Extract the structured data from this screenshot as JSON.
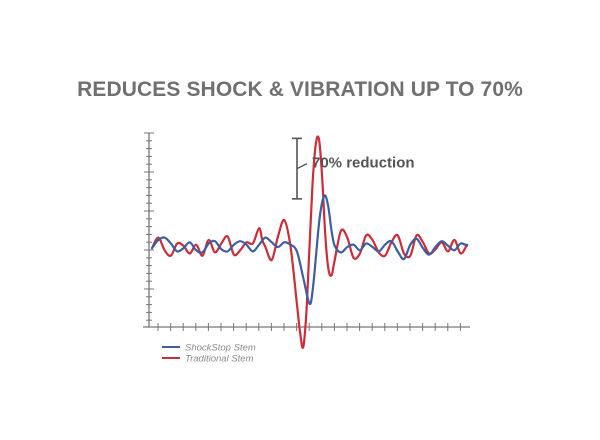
{
  "title": "REDUCES SHOCK & VIBRATION UP TO 70%",
  "colors": {
    "title": "#707070",
    "axis": "#777777",
    "shockstop": "#3b5ea5",
    "traditional": "#d12b35",
    "annotation": "#555555",
    "legend_text": "#8a8a8a"
  },
  "chart_data": {
    "type": "line",
    "title": "REDUCES SHOCK & VIBRATION UP TO 70%",
    "xlabel": "",
    "ylabel": "",
    "xlim": [
      0,
      100
    ],
    "ylim": [
      -100,
      100
    ],
    "grid": false,
    "legend_position": "bottom-left",
    "annotation": {
      "text": "70% reduction",
      "from_value": 92,
      "to_value": 42
    },
    "series": [
      {
        "name": "ShockStop Stem",
        "color": "#3b5ea5",
        "points": [
          [
            0,
            -1
          ],
          [
            2,
            6
          ],
          [
            4,
            8
          ],
          [
            6,
            3
          ],
          [
            8,
            -4
          ],
          [
            10,
            -1
          ],
          [
            12,
            4
          ],
          [
            14,
            -3
          ],
          [
            16,
            -5
          ],
          [
            18,
            3
          ],
          [
            20,
            5
          ],
          [
            22,
            -2
          ],
          [
            24,
            -4
          ],
          [
            26,
            2
          ],
          [
            28,
            5
          ],
          [
            30,
            2
          ],
          [
            32,
            -4
          ],
          [
            34,
            2
          ],
          [
            36,
            8
          ],
          [
            38,
            4
          ],
          [
            40,
            0
          ],
          [
            42,
            4
          ],
          [
            44,
            2
          ],
          [
            46,
            -4
          ],
          [
            48,
            -28
          ],
          [
            50,
            -52
          ],
          [
            51,
            -40
          ],
          [
            52,
            -10
          ],
          [
            53,
            20
          ],
          [
            54,
            38
          ],
          [
            55,
            44
          ],
          [
            56,
            34
          ],
          [
            57,
            14
          ],
          [
            58,
            1
          ],
          [
            60,
            -5
          ],
          [
            62,
            0
          ],
          [
            64,
            2
          ],
          [
            66,
            -3
          ],
          [
            68,
            3
          ],
          [
            70,
            0
          ],
          [
            72,
            -4
          ],
          [
            74,
            2
          ],
          [
            76,
            5
          ],
          [
            78,
            -4
          ],
          [
            80,
            -11
          ],
          [
            82,
            2
          ],
          [
            84,
            7
          ],
          [
            86,
            -1
          ],
          [
            88,
            -7
          ],
          [
            90,
            0
          ],
          [
            92,
            5
          ],
          [
            94,
            1
          ],
          [
            96,
            -3
          ],
          [
            98,
            3
          ],
          [
            100,
            1
          ]
        ]
      },
      {
        "name": "Traditional Stem",
        "color": "#d12b35",
        "points": [
          [
            0,
            -1
          ],
          [
            2,
            8
          ],
          [
            4,
            -3
          ],
          [
            6,
            -8
          ],
          [
            8,
            3
          ],
          [
            10,
            1
          ],
          [
            12,
            -6
          ],
          [
            14,
            2
          ],
          [
            16,
            -8
          ],
          [
            18,
            6
          ],
          [
            20,
            -5
          ],
          [
            22,
            3
          ],
          [
            24,
            9
          ],
          [
            26,
            -7
          ],
          [
            28,
            -3
          ],
          [
            30,
            4
          ],
          [
            32,
            3
          ],
          [
            34,
            16
          ],
          [
            35,
            6
          ],
          [
            36,
            0
          ],
          [
            38,
            -12
          ],
          [
            40,
            9
          ],
          [
            42,
            23
          ],
          [
            44,
            0
          ],
          [
            46,
            -52
          ],
          [
            47,
            -78
          ],
          [
            48,
            -92
          ],
          [
            49,
            -60
          ],
          [
            50,
            0
          ],
          [
            51,
            55
          ],
          [
            52,
            88
          ],
          [
            53,
            92
          ],
          [
            54,
            60
          ],
          [
            55,
            10
          ],
          [
            56,
            -20
          ],
          [
            57,
            -26
          ],
          [
            58,
            -12
          ],
          [
            60,
            14
          ],
          [
            62,
            8
          ],
          [
            64,
            -10
          ],
          [
            66,
            -6
          ],
          [
            68,
            10
          ],
          [
            70,
            6
          ],
          [
            72,
            -5
          ],
          [
            74,
            -8
          ],
          [
            76,
            4
          ],
          [
            78,
            10
          ],
          [
            80,
            -6
          ],
          [
            82,
            -8
          ],
          [
            84,
            10
          ],
          [
            86,
            4
          ],
          [
            88,
            -6
          ],
          [
            90,
            -2
          ],
          [
            92,
            4
          ],
          [
            94,
            -4
          ],
          [
            96,
            6
          ],
          [
            98,
            -6
          ],
          [
            100,
            2
          ]
        ]
      }
    ]
  }
}
